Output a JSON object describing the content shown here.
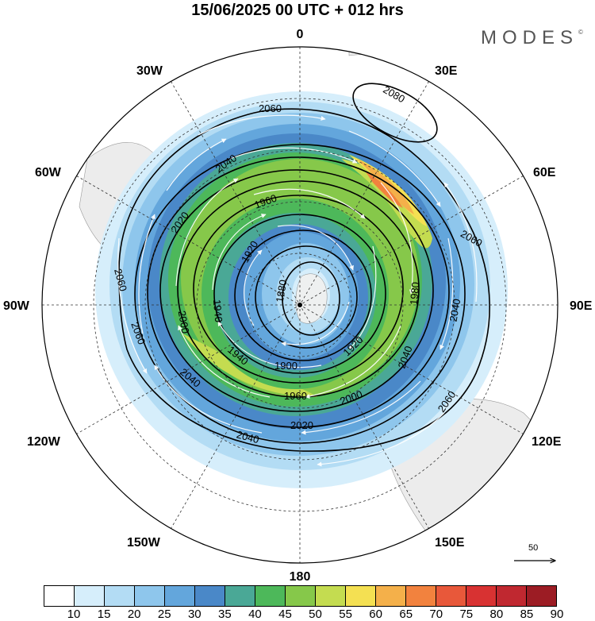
{
  "title": "15/06/2025  00 UTC  + 012 hrs",
  "logo": "MODES",
  "logo_mark": "©",
  "longitude_labels": {
    "top": "0",
    "bottom": "180",
    "left": "90W",
    "right": "90E",
    "lon30w": "30W",
    "lon30e": "30E",
    "lon60w": "60W",
    "lon60e": "60E",
    "lon120w": "120W",
    "lon120e": "120E",
    "lon150w": "150W",
    "lon150e": "150E"
  },
  "contour_labels": [
    "2080",
    "2060",
    "2060",
    "2060",
    "2060",
    "2060",
    "2040",
    "2040",
    "2040",
    "2040",
    "2040",
    "2020",
    "2020",
    "2000",
    "2000",
    "1980",
    "1960",
    "1960",
    "1940",
    "1940",
    "1920",
    "1920",
    "1900",
    "1880"
  ],
  "wind_scale_label": "50",
  "colorbar": {
    "colors": [
      "#ffffff",
      "#d6eefb",
      "#b3dcf4",
      "#8ec6ec",
      "#63a6dc",
      "#4a88c8",
      "#4aa896",
      "#4db85a",
      "#86c84a",
      "#c4dc50",
      "#f4e052",
      "#f4b04a",
      "#f2823e",
      "#e8583a",
      "#d83232",
      "#c02830",
      "#9c1c24"
    ],
    "labels": [
      "10",
      "15",
      "20",
      "25",
      "30",
      "35",
      "40",
      "45",
      "50",
      "55",
      "60",
      "65",
      "70",
      "75",
      "80",
      "85",
      "90"
    ]
  }
}
